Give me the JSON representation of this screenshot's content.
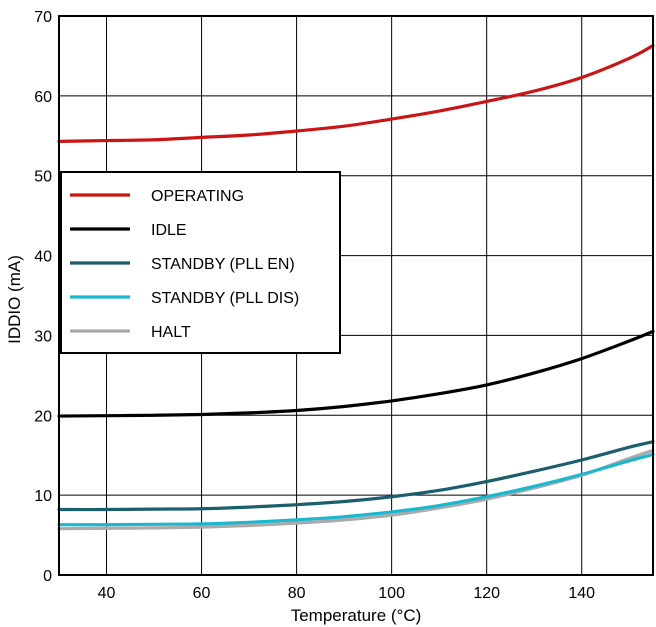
{
  "chart_data": {
    "type": "line",
    "title": "",
    "xlabel": "Temperature (°C)",
    "ylabel": "IDDIO (mA)",
    "xlim": [
      30,
      155
    ],
    "ylim": [
      0,
      70
    ],
    "xticks": [
      40,
      60,
      80,
      100,
      120,
      140
    ],
    "yticks": [
      0,
      10,
      20,
      30,
      40,
      50,
      60,
      70
    ],
    "grid": true,
    "legend_position": "top-left",
    "series": [
      {
        "name": "OPERATING",
        "color": "#cc1414",
        "x": [
          30,
          40,
          50,
          60,
          70,
          80,
          90,
          100,
          110,
          120,
          130,
          140,
          150,
          155
        ],
        "y": [
          54.3,
          54.4,
          54.5,
          54.8,
          55.1,
          55.6,
          56.2,
          57.1,
          58.1,
          59.3,
          60.6,
          62.3,
          64.7,
          66.3
        ]
      },
      {
        "name": "IDLE",
        "color": "#000000",
        "x": [
          30,
          40,
          50,
          60,
          70,
          80,
          90,
          100,
          110,
          120,
          130,
          140,
          150,
          155
        ],
        "y": [
          19.9,
          19.95,
          20.0,
          20.1,
          20.3,
          20.6,
          21.1,
          21.8,
          22.7,
          23.8,
          25.3,
          27.1,
          29.3,
          30.5
        ]
      },
      {
        "name": "STANDBY (PLL EN)",
        "color": "#1b5e6e",
        "x": [
          30,
          40,
          50,
          60,
          70,
          80,
          90,
          100,
          110,
          120,
          130,
          140,
          150,
          155
        ],
        "y": [
          8.2,
          8.2,
          8.25,
          8.3,
          8.5,
          8.8,
          9.2,
          9.8,
          10.6,
          11.7,
          13.0,
          14.4,
          16.0,
          16.7
        ]
      },
      {
        "name": "STANDBY (PLL DIS)",
        "color": "#1ab8d0",
        "x": [
          30,
          40,
          50,
          60,
          70,
          80,
          90,
          100,
          110,
          120,
          130,
          140,
          150,
          155
        ],
        "y": [
          6.3,
          6.3,
          6.35,
          6.4,
          6.6,
          6.9,
          7.3,
          7.9,
          8.7,
          9.8,
          11.1,
          12.6,
          14.3,
          15.1
        ]
      },
      {
        "name": "HALT",
        "color": "#aaaaaa",
        "x": [
          30,
          40,
          50,
          60,
          70,
          80,
          90,
          100,
          110,
          120,
          130,
          140,
          150,
          155
        ],
        "y": [
          5.8,
          5.85,
          5.9,
          6.0,
          6.2,
          6.5,
          6.9,
          7.5,
          8.4,
          9.5,
          10.9,
          12.5,
          14.6,
          15.6
        ]
      }
    ]
  }
}
